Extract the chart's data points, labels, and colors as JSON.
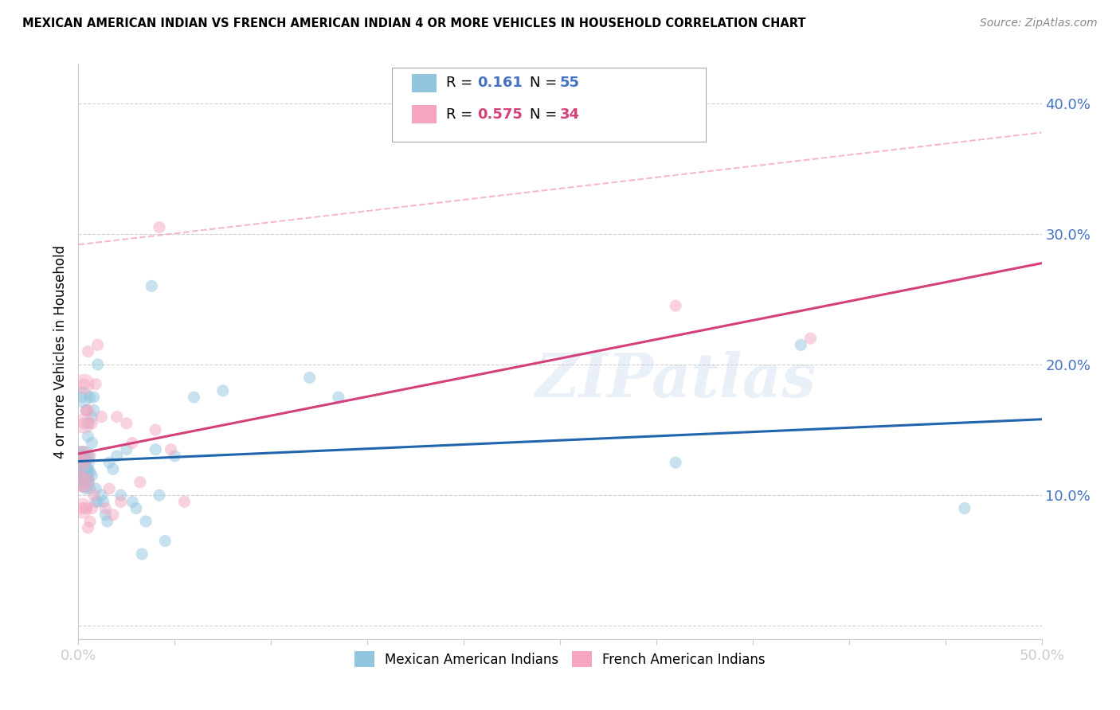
{
  "title": "MEXICAN AMERICAN INDIAN VS FRENCH AMERICAN INDIAN 4 OR MORE VEHICLES IN HOUSEHOLD CORRELATION CHART",
  "source": "Source: ZipAtlas.com",
  "ylabel": "4 or more Vehicles in Household",
  "xlim": [
    0.0,
    0.5
  ],
  "ylim": [
    -0.01,
    0.43
  ],
  "xticks": [
    0.0,
    0.05,
    0.1,
    0.15,
    0.2,
    0.25,
    0.3,
    0.35,
    0.4,
    0.45,
    0.5
  ],
  "yticks": [
    0.0,
    0.1,
    0.2,
    0.3,
    0.4
  ],
  "color_blue": "#92c5de",
  "color_pink": "#f4a6c0",
  "color_blue_line": "#2166ac",
  "color_pink_line": "#d6407a",
  "color_dashed_line": "#f4a6c0",
  "color_axis_text": "#4472c4",
  "watermark": "ZIPatlas",
  "blue_scatter_x": [
    0.001,
    0.001,
    0.002,
    0.002,
    0.002,
    0.002,
    0.003,
    0.003,
    0.003,
    0.003,
    0.004,
    0.004,
    0.004,
    0.004,
    0.005,
    0.005,
    0.005,
    0.005,
    0.006,
    0.006,
    0.006,
    0.007,
    0.007,
    0.007,
    0.008,
    0.008,
    0.009,
    0.009,
    0.01,
    0.01,
    0.012,
    0.013,
    0.014,
    0.015,
    0.016,
    0.018,
    0.02,
    0.022,
    0.025,
    0.028,
    0.03,
    0.033,
    0.035,
    0.038,
    0.04,
    0.042,
    0.045,
    0.05,
    0.06,
    0.075,
    0.12,
    0.135,
    0.31,
    0.375,
    0.46
  ],
  "blue_scatter_y": [
    0.13,
    0.115,
    0.12,
    0.115,
    0.175,
    0.118,
    0.13,
    0.11,
    0.115,
    0.125,
    0.115,
    0.12,
    0.105,
    0.165,
    0.145,
    0.155,
    0.12,
    0.11,
    0.105,
    0.118,
    0.175,
    0.16,
    0.115,
    0.14,
    0.175,
    0.165,
    0.095,
    0.105,
    0.2,
    0.095,
    0.1,
    0.095,
    0.085,
    0.08,
    0.125,
    0.12,
    0.13,
    0.1,
    0.135,
    0.095,
    0.09,
    0.055,
    0.08,
    0.26,
    0.135,
    0.1,
    0.065,
    0.13,
    0.175,
    0.18,
    0.19,
    0.175,
    0.125,
    0.215,
    0.09
  ],
  "pink_scatter_x": [
    0.001,
    0.001,
    0.002,
    0.002,
    0.003,
    0.003,
    0.003,
    0.004,
    0.004,
    0.005,
    0.005,
    0.005,
    0.006,
    0.006,
    0.007,
    0.007,
    0.008,
    0.009,
    0.01,
    0.012,
    0.014,
    0.016,
    0.018,
    0.02,
    0.022,
    0.025,
    0.028,
    0.032,
    0.04,
    0.042,
    0.048,
    0.055,
    0.31,
    0.38
  ],
  "pink_scatter_y": [
    0.11,
    0.125,
    0.09,
    0.13,
    0.155,
    0.11,
    0.185,
    0.09,
    0.165,
    0.21,
    0.075,
    0.165,
    0.13,
    0.08,
    0.09,
    0.155,
    0.1,
    0.185,
    0.215,
    0.16,
    0.09,
    0.105,
    0.085,
    0.16,
    0.095,
    0.155,
    0.14,
    0.11,
    0.15,
    0.305,
    0.135,
    0.095,
    0.245,
    0.22
  ],
  "background_color": "#ffffff",
  "grid_color": "#d0d0d0",
  "legend_label_blue": "Mexican American Indians",
  "legend_label_pink": "French American Indians",
  "blue_r": "0.161",
  "blue_n": "55",
  "pink_r": "0.575",
  "pink_n": "34"
}
